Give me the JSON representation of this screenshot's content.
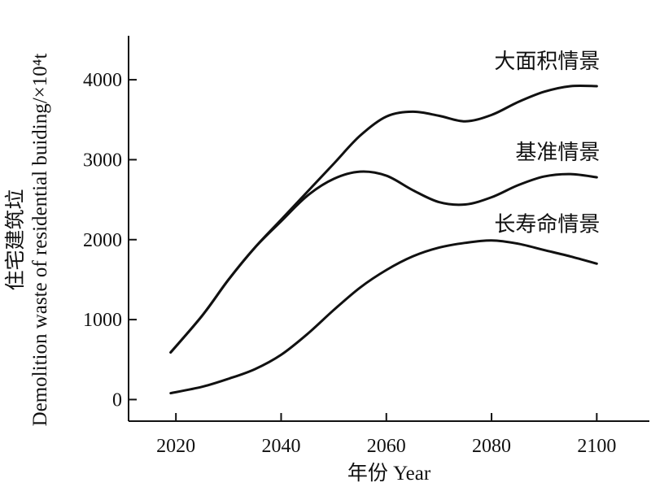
{
  "chart_data": {
    "type": "line",
    "xlabel": "年份 Year",
    "ylabel_line1": "住宅建筑垃",
    "ylabel_line2": "Demolition waste of residential buiding/×10⁴t",
    "x_ticks": [
      2020,
      2040,
      2060,
      2080,
      2100
    ],
    "y_ticks": [
      0,
      1000,
      2000,
      3000,
      4000
    ],
    "xlim": [
      2011,
      2110
    ],
    "ylim": [
      -270,
      4550
    ],
    "grid": false,
    "x": [
      2019,
      2025,
      2030,
      2035,
      2040,
      2045,
      2050,
      2055,
      2060,
      2065,
      2070,
      2075,
      2080,
      2085,
      2090,
      2095,
      2100
    ],
    "series": [
      {
        "name": "大面积情景",
        "values": [
          590,
          1050,
          1500,
          1900,
          2250,
          2600,
          2950,
          3300,
          3540,
          3600,
          3550,
          3480,
          3560,
          3720,
          3850,
          3920,
          3920
        ]
      },
      {
        "name": "基准情景",
        "values": [
          590,
          1050,
          1500,
          1900,
          2230,
          2550,
          2760,
          2850,
          2800,
          2620,
          2470,
          2440,
          2530,
          2680,
          2790,
          2820,
          2780
        ]
      },
      {
        "name": "长寿命情景",
        "values": [
          80,
          160,
          260,
          380,
          560,
          820,
          1120,
          1400,
          1620,
          1790,
          1900,
          1960,
          1990,
          1950,
          1870,
          1790,
          1700
        ]
      }
    ]
  }
}
